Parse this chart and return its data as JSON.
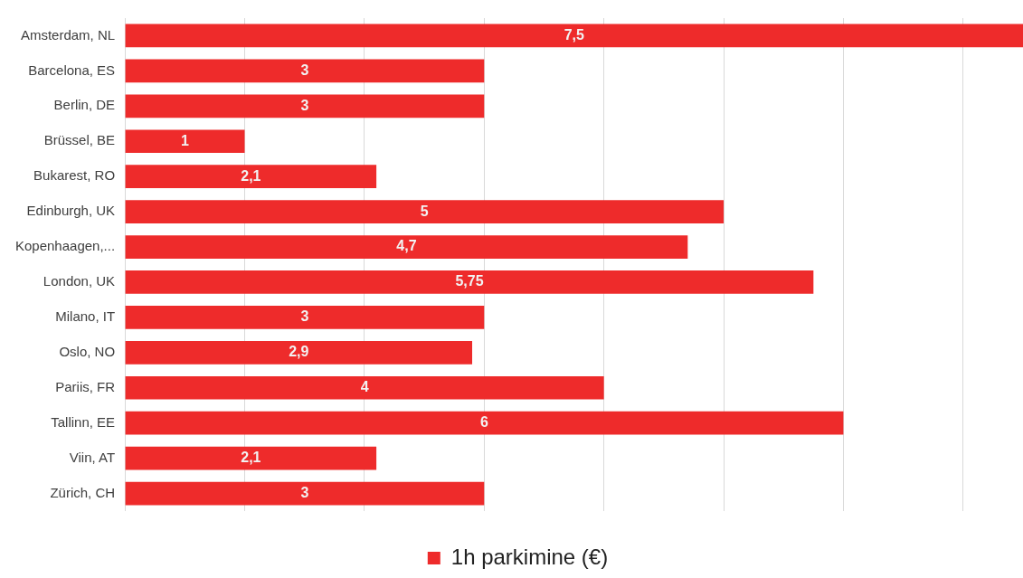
{
  "chart_data": {
    "type": "bar",
    "orientation": "horizontal",
    "categories": [
      "Amsterdam, NL",
      "Barcelona, ES",
      "Berlin, DE",
      "Brüssel, BE",
      "Bukarest, RO",
      "Edinburgh, UK",
      "Kopenhaagen,...",
      "London, UK",
      "Milano, IT",
      "Oslo, NO",
      "Pariis, FR",
      "Tallinn, EE",
      "Viin, AT",
      "Zürich, CH"
    ],
    "series": [
      {
        "name": "1h parkimine (€)",
        "color": "#ee2b2b",
        "values": [
          7.5,
          3,
          3,
          1,
          2.1,
          5,
          4.7,
          5.75,
          3,
          2.9,
          4,
          6,
          2.1,
          3
        ],
        "value_labels": [
          "7,5",
          "3",
          "3",
          "1",
          "2,1",
          "5",
          "4,7",
          "5,75",
          "3",
          "2,9",
          "4",
          "6",
          "2,1",
          "3"
        ]
      }
    ],
    "xlim": [
      0,
      7.5
    ],
    "xticks": [
      {
        "value": 0,
        "label": null
      },
      {
        "value": 1,
        "label": null
      },
      {
        "value": 2,
        "label": null
      },
      {
        "value": 3,
        "label": null
      },
      {
        "value": 4,
        "label": null
      },
      {
        "value": 5,
        "label": null
      },
      {
        "value": 6,
        "label": null
      },
      {
        "value": 7,
        "label": null
      }
    ],
    "grid": "x",
    "tick_labels": "y",
    "legend": "bottom"
  }
}
